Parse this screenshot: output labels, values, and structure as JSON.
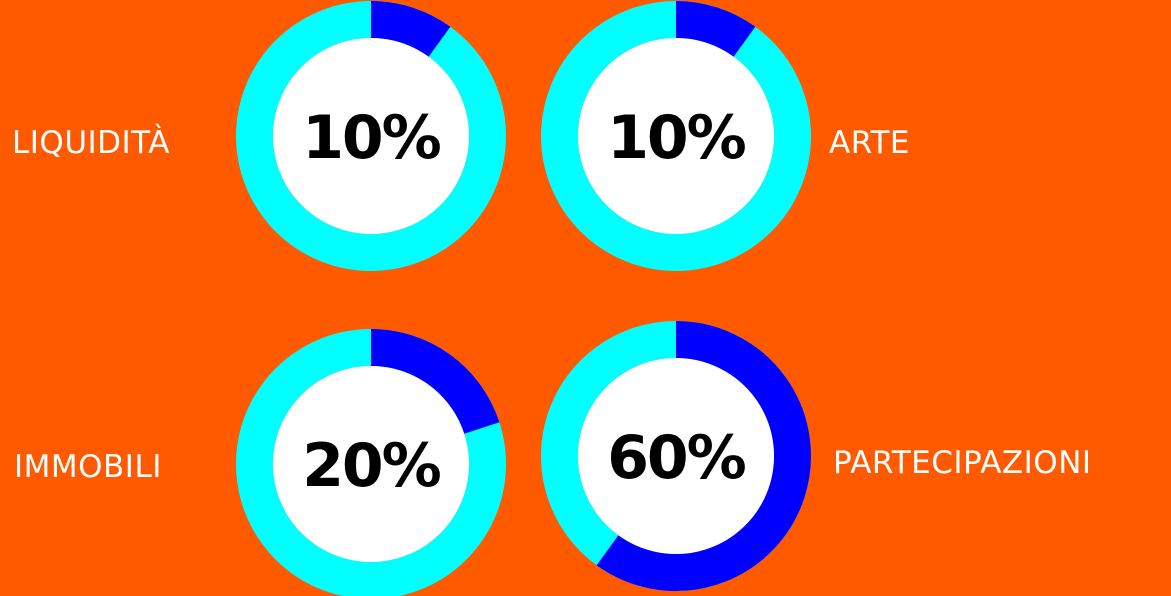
{
  "chart_data": {
    "type": "pie",
    "colors": {
      "background": "#FF5A00",
      "share": "#0000FF",
      "remainder": "#00FFFF",
      "hole": "#FFFFFF",
      "label": "#FFFFFF",
      "value_text": "#000000"
    },
    "items": [
      {
        "label": "LIQUIDITÀ",
        "value": 10,
        "value_label": "10%"
      },
      {
        "label": "ARTE",
        "value": 10,
        "value_label": "10%"
      },
      {
        "label": "IMMOBILI",
        "value": 20,
        "value_label": "20%"
      },
      {
        "label": "PARTECIPAZIONI",
        "value": 60,
        "value_label": "60%"
      }
    ]
  }
}
